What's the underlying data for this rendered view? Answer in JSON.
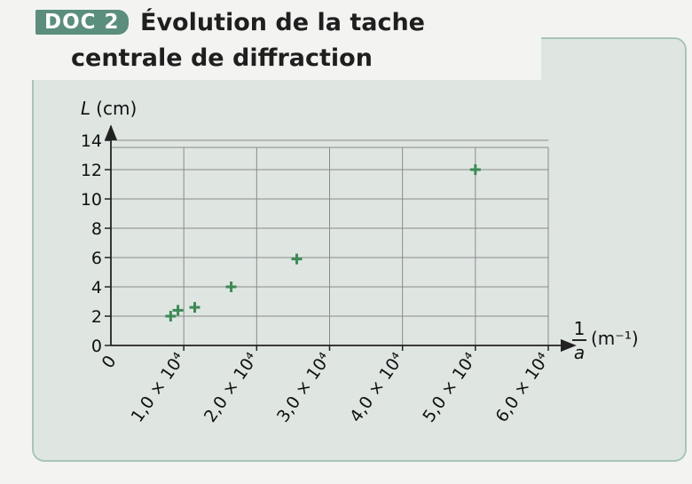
{
  "document": {
    "badge": "DOC 2",
    "title": "Évolution de la tache centrale de diffraction"
  },
  "colors": {
    "badge": "#5b8e7d",
    "panel": "#dfe6e2",
    "panel_border": "#a7c4b8",
    "points": "#3e8a57",
    "grid": "#8a8a8a"
  },
  "chart_data": {
    "type": "scatter",
    "title": "Évolution de la tache centrale de diffraction",
    "ylabel_symbol": "L",
    "ylabel_unit": "(cm)",
    "xlabel_fraction_num": "1",
    "xlabel_fraction_den": "a",
    "xlabel_unit": "(m⁻¹)",
    "xlim": [
      0,
      60000
    ],
    "ylim": [
      0,
      14
    ],
    "grid": true,
    "marker": "+",
    "x_ticks": [
      {
        "value": 0,
        "label": "0"
      },
      {
        "value": 10000,
        "label": "1,0 × 10⁴"
      },
      {
        "value": 20000,
        "label": "2,0 × 10⁴"
      },
      {
        "value": 30000,
        "label": "3,0 × 10⁴"
      },
      {
        "value": 40000,
        "label": "4,0 × 10⁴"
      },
      {
        "value": 50000,
        "label": "5,0 × 10⁴"
      },
      {
        "value": 60000,
        "label": "6,0 × 10⁴"
      }
    ],
    "y_ticks": [
      {
        "value": 0,
        "label": "0"
      },
      {
        "value": 2,
        "label": "2"
      },
      {
        "value": 4,
        "label": "4"
      },
      {
        "value": 6,
        "label": "6"
      },
      {
        "value": 8,
        "label": "8"
      },
      {
        "value": 10,
        "label": "10"
      },
      {
        "value": 12,
        "label": "12"
      },
      {
        "value": 14,
        "label": "14"
      }
    ],
    "points": [
      {
        "x": 8200,
        "y": 2.0
      },
      {
        "x": 9200,
        "y": 2.4
      },
      {
        "x": 11500,
        "y": 2.6
      },
      {
        "x": 16500,
        "y": 4.0
      },
      {
        "x": 25500,
        "y": 5.9
      },
      {
        "x": 50000,
        "y": 12.0
      }
    ]
  }
}
